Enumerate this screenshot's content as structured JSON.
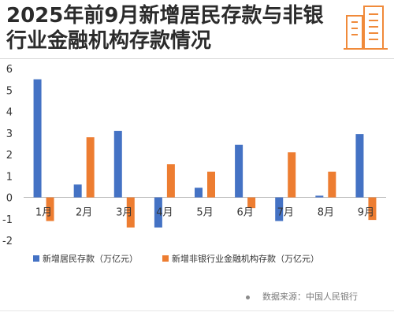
{
  "header": {
    "title": "2025年前9月新增居民存款与非银行业金融机构存款情况",
    "logo_icon": "building-icon",
    "accent_color": "#f08a3a"
  },
  "footer": {
    "source": "数据来源：中国人民银行"
  },
  "chart_data": {
    "type": "bar",
    "categories": [
      "1月",
      "2月",
      "3月",
      "4月",
      "5月",
      "6月",
      "7月",
      "8月",
      "9月"
    ],
    "series": [
      {
        "name": "新增居民存款（万亿元）",
        "color": "#4472c4",
        "values": [
          5.5,
          0.6,
          3.1,
          -1.4,
          0.45,
          2.45,
          -1.1,
          0.08,
          2.95
        ]
      },
      {
        "name": "新增非银行业金融机构存款（万亿元）",
        "color": "#ed7d31",
        "values": [
          -1.1,
          2.8,
          -1.4,
          1.55,
          1.2,
          -0.5,
          2.1,
          1.2,
          -1.05
        ]
      }
    ],
    "yticks": [
      "6",
      "5",
      "4",
      "3",
      "2",
      "1",
      "0",
      "-1",
      "-2"
    ],
    "ylim": [
      -2,
      6
    ],
    "grid": false,
    "legend_position": "bottom-left",
    "title": "",
    "xlabel": "",
    "ylabel": ""
  }
}
